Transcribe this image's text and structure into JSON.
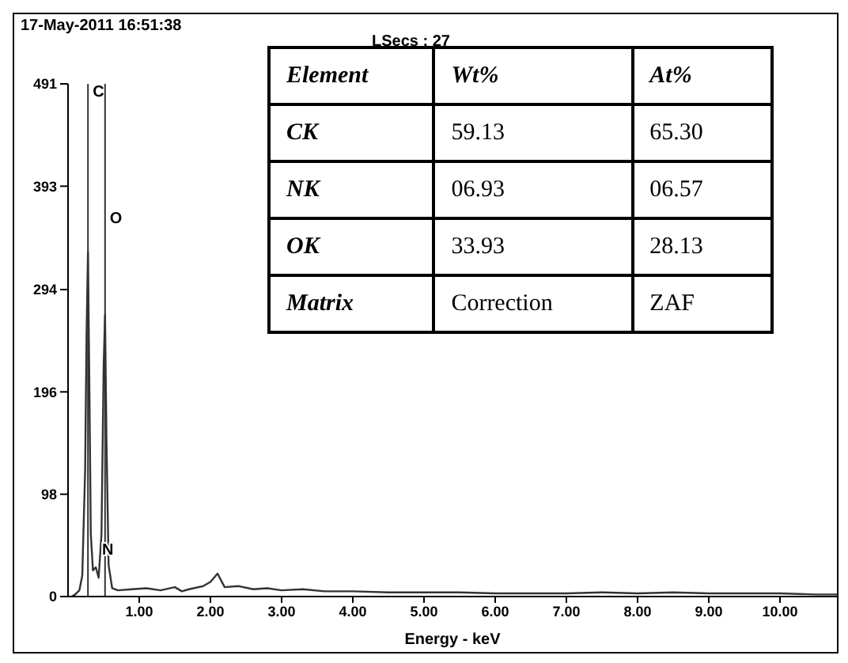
{
  "chart_data": {
    "type": "line",
    "title": "17-May-2011 16:51:38",
    "subtitle": "LSecs : 27",
    "xlabel": "Energy - keV",
    "color": "#333333",
    "x": [
      0.05,
      0.1,
      0.16,
      0.2,
      0.24,
      0.26,
      0.28,
      0.3,
      0.32,
      0.35,
      0.39,
      0.43,
      0.47,
      0.5,
      0.52,
      0.54,
      0.57,
      0.62,
      0.7,
      0.9,
      1.1,
      1.3,
      1.5,
      1.6,
      1.7,
      1.9,
      2.0,
      2.1,
      2.2,
      2.4,
      2.6,
      2.8,
      3.0,
      3.3,
      3.6,
      4.0,
      4.5,
      5.0,
      5.5,
      6.0,
      6.5,
      7.0,
      7.5,
      8.0,
      8.5,
      9.0,
      9.5,
      10.0,
      10.5,
      10.8
    ],
    "values": [
      0,
      2,
      6,
      20,
      120,
      250,
      330,
      200,
      60,
      25,
      28,
      18,
      60,
      220,
      270,
      150,
      30,
      8,
      6,
      7,
      8,
      6,
      9,
      5,
      7,
      10,
      14,
      22,
      9,
      10,
      7,
      8,
      6,
      7,
      5,
      5,
      4,
      4,
      4,
      3,
      3,
      3,
      4,
      3,
      4,
      3,
      3,
      3,
      2,
      2
    ],
    "xlim": [
      0,
      10.8
    ],
    "xticks": [
      {
        "value": 1,
        "label": "1.00"
      },
      {
        "value": 2,
        "label": "2.00"
      },
      {
        "value": 3,
        "label": "3.00"
      },
      {
        "value": 4,
        "label": "4.00"
      },
      {
        "value": 5,
        "label": "5.00"
      },
      {
        "value": 6,
        "label": "6.00"
      },
      {
        "value": 7,
        "label": "7.00"
      },
      {
        "value": 8,
        "label": "8.00"
      },
      {
        "value": 9,
        "label": "9.00"
      },
      {
        "value": 10,
        "label": "10.00"
      }
    ],
    "ylim": [
      0,
      491
    ],
    "yticks": [
      0,
      98,
      196,
      294,
      393,
      491
    ],
    "ref_lines": [
      {
        "axis": "x",
        "value": 0.28,
        "label": "C",
        "color": "#333333"
      },
      {
        "axis": "x",
        "value": 0.52,
        "label": "O",
        "color": "#333333"
      }
    ],
    "annotations": [
      {
        "text": "N",
        "x": 0.39,
        "y": 40
      },
      "Element",
      "Wt%",
      "At%",
      "CK",
      "59.13",
      "65.30",
      "NK",
      "06.93",
      "06.57",
      "OK",
      "33.93",
      "28.13",
      "Matrix",
      "Correction",
      "ZAF"
    ]
  }
}
